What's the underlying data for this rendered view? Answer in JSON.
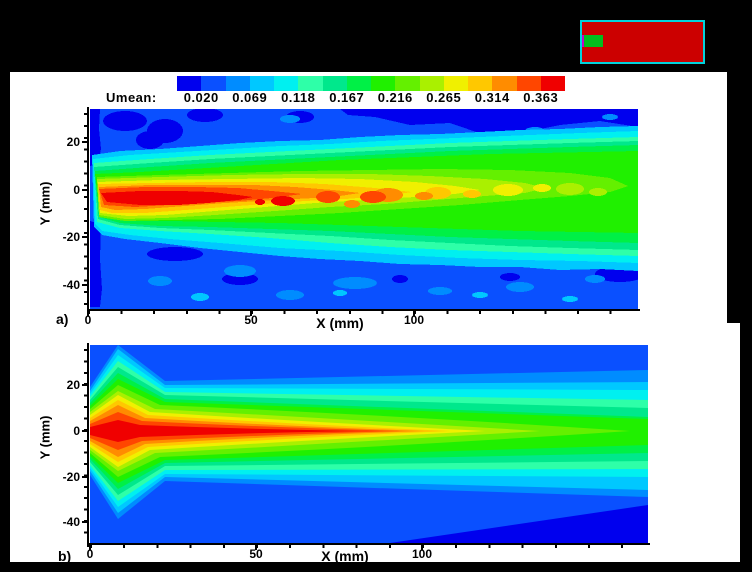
{
  "colorbar": {
    "title": "Umean:",
    "labels": [
      "0.020",
      "0.069",
      "0.118",
      "0.167",
      "0.216",
      "0.265",
      "0.314",
      "0.363"
    ],
    "colors": [
      "#0000EE",
      "#0A50FF",
      "#008CFF",
      "#00C8FF",
      "#00F0F0",
      "#2EFFA8",
      "#00E88C",
      "#00F046",
      "#20F000",
      "#64F000",
      "#AAF000",
      "#F0F000",
      "#FFC800",
      "#FF8C00",
      "#FF4600",
      "#F00000"
    ]
  },
  "logo": {
    "red": "#CC0000",
    "green": "#00BE1E",
    "border": "#00D2DC",
    "magenta": "#C800C8"
  },
  "plots": {
    "a": {
      "panel_label": "a)",
      "xlabel": "X (mm)",
      "ylabel": "Y (mm)",
      "x_ticks": [
        "0",
        "50",
        "100"
      ],
      "y_ticks": [
        "20",
        "0",
        "-20",
        "-40"
      ]
    },
    "b": {
      "panel_label": "b)",
      "xlabel": "X (mm)",
      "ylabel": "Y (mm)",
      "x_ticks": [
        "0",
        "50",
        "100"
      ],
      "y_ticks": [
        "20",
        "0",
        "-20",
        "-40"
      ]
    }
  },
  "chart_data": [
    {
      "type": "heatmap",
      "panel": "a)",
      "title": "Umean contour map (measured, noisy/irregular contours)",
      "variable": "Umean",
      "xlabel": "X (mm)",
      "ylabel": "Y (mm)",
      "x_range": [
        0,
        168
      ],
      "y_range": [
        -50,
        33
      ],
      "x_ticks": [
        0,
        50,
        100
      ],
      "y_ticks": [
        20,
        0,
        -20,
        -40
      ],
      "contour_levels": [
        0.02,
        0.069,
        0.118,
        0.167,
        0.216,
        0.265,
        0.314,
        0.363
      ],
      "legend_position": "top",
      "grid": false,
      "structure": "Round jet issuing from left wall at y≈0; red core (Umean≈0.363) extends x≈2-52 mm slightly below centerline with detached red patches near x≈58-66 mm; orange region to x≈95 mm; yellow to x≈130 mm; green band spreads from y≈±12 mm at x=0 to y≈+18/-16 mm at x=168 mm; background blue with darker-blue and lighter-blue speckle patches"
    },
    {
      "type": "heatmap",
      "panel": "b)",
      "title": "Umean contour map (computed, smooth symmetric contours)",
      "variable": "Umean",
      "xlabel": "X (mm)",
      "ylabel": "Y (mm)",
      "x_range": [
        0,
        168
      ],
      "y_range": [
        -50,
        37
      ],
      "x_ticks": [
        0,
        50,
        100
      ],
      "y_ticks": [
        20,
        0,
        -20,
        -40
      ],
      "contour_levels": [
        0.02,
        0.069,
        0.118,
        0.167,
        0.216,
        0.265,
        0.314,
        0.363
      ],
      "legend_position": "top",
      "grid": false,
      "structure": "Smooth symmetric jet about y=0; red diamond-shaped core peaking near x≈9 mm with thin red centerline sliver to x≈82 mm; nested orange/yellow wedges taper to tips at x≈95-140 mm; yellow-green wedge tip x≈165 mm; green band reaches right edge; outer cyan/blue bands spread linearly; dark blue wedge in lower-right corner"
    }
  ]
}
